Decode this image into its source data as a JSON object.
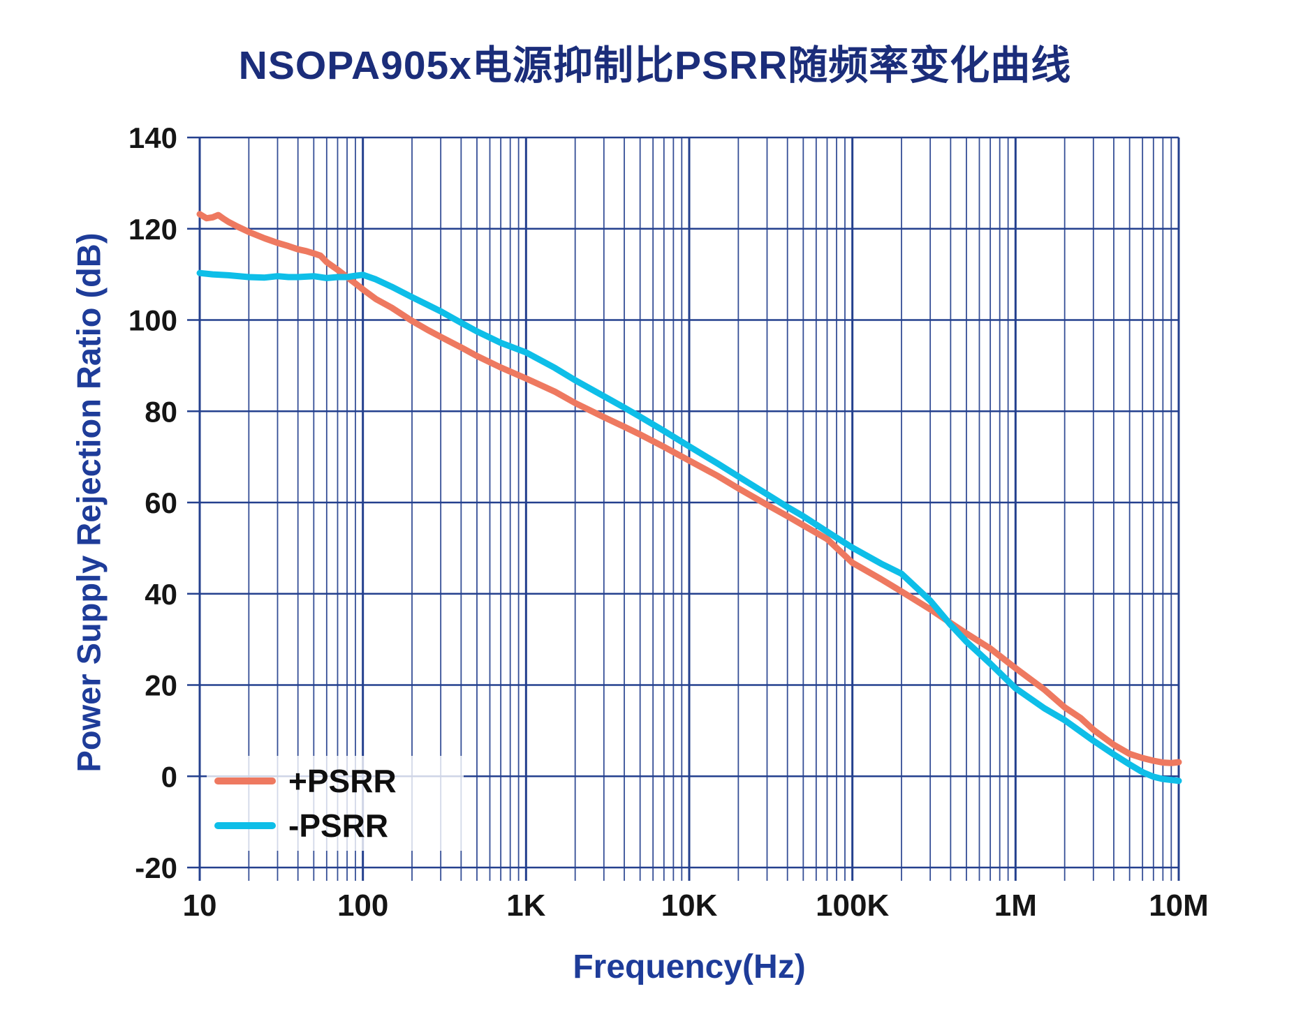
{
  "title": "NSOPA905x电源抑制比PSRR随频率变化曲线",
  "colors": {
    "background": "#FFFFFF",
    "grid": "#24408E",
    "title": "#1B2D7A",
    "axis_title": "#1E3C99",
    "tick_label": "#151515",
    "legend_text": "#0F0F0F",
    "pos_psrr": "#EE7960",
    "neg_psrr": "#0EBEE8"
  },
  "legend": {
    "position": "inside bottom-left",
    "entries": [
      "+PSRR",
      "-PSRR"
    ]
  },
  "chart_data": {
    "type": "line",
    "title": "NSOPA905x电源抑制比PSRR随频率变化曲线",
    "xlabel": "Frequency(Hz)",
    "ylabel": "Power Supply Rejection Ratio (dB)",
    "x_scale": "log",
    "xlim": [
      10,
      10000000
    ],
    "ylim": [
      -20,
      140
    ],
    "grid": "navy major + minor log grid, horizontal lines every 20 dB",
    "legend_position": "inside bottom-left, translucent white box",
    "x_ticks": [
      {
        "value": 10,
        "label": "10"
      },
      {
        "value": 100,
        "label": "100"
      },
      {
        "value": 1000,
        "label": "1K"
      },
      {
        "value": 10000,
        "label": "10K"
      },
      {
        "value": 100000,
        "label": "100K"
      },
      {
        "value": 1000000,
        "label": "1M"
      },
      {
        "value": 10000000,
        "label": "10M"
      }
    ],
    "y_ticks": [
      {
        "value": -20,
        "label": "-20"
      },
      {
        "value": 0,
        "label": "0"
      },
      {
        "value": 20,
        "label": "20"
      },
      {
        "value": 40,
        "label": "40"
      },
      {
        "value": 60,
        "label": "60"
      },
      {
        "value": 80,
        "label": "80"
      },
      {
        "value": 100,
        "label": "100"
      },
      {
        "value": 120,
        "label": "120"
      },
      {
        "value": 140,
        "label": "140"
      }
    ],
    "series": [
      {
        "id": "pos-psrr",
        "name": "+PSRR",
        "color": "#EE7960",
        "points": [
          [
            10,
            123.2
          ],
          [
            11,
            122.3
          ],
          [
            12,
            122.5
          ],
          [
            13,
            123.0
          ],
          [
            14,
            122.2
          ],
          [
            15,
            121.5
          ],
          [
            17,
            120.5
          ],
          [
            20,
            119.3
          ],
          [
            25,
            117.9
          ],
          [
            30,
            116.9
          ],
          [
            35,
            116.2
          ],
          [
            40,
            115.5
          ],
          [
            45,
            115.1
          ],
          [
            50,
            114.6
          ],
          [
            55,
            114.1
          ],
          [
            60,
            112.7
          ],
          [
            70,
            111.0
          ],
          [
            80,
            109.4
          ],
          [
            90,
            108.0
          ],
          [
            100,
            106.7
          ],
          [
            120,
            104.6
          ],
          [
            150,
            102.7
          ],
          [
            200,
            99.8
          ],
          [
            250,
            97.8
          ],
          [
            300,
            96.3
          ],
          [
            400,
            94.0
          ],
          [
            500,
            92.1
          ],
          [
            700,
            89.6
          ],
          [
            1000,
            87.2
          ],
          [
            1500,
            84.3
          ],
          [
            2000,
            81.8
          ],
          [
            3000,
            78.7
          ],
          [
            4000,
            76.6
          ],
          [
            5000,
            74.9
          ],
          [
            7000,
            72.2
          ],
          [
            10000,
            69.2
          ],
          [
            15000,
            65.8
          ],
          [
            20000,
            63.1
          ],
          [
            30000,
            59.5
          ],
          [
            40000,
            57.0
          ],
          [
            50000,
            55.0
          ],
          [
            70000,
            52.0
          ],
          [
            100000,
            46.8
          ],
          [
            150000,
            43.2
          ],
          [
            200000,
            40.5
          ],
          [
            300000,
            36.6
          ],
          [
            400000,
            33.6
          ],
          [
            500000,
            31.3
          ],
          [
            700000,
            28.0
          ],
          [
            1000000,
            23.7
          ],
          [
            1500000,
            19.0
          ],
          [
            2000000,
            15.1
          ],
          [
            2500000,
            12.8
          ],
          [
            3000000,
            10.2
          ],
          [
            4000000,
            6.9
          ],
          [
            5000000,
            4.9
          ],
          [
            6000000,
            4.0
          ],
          [
            7000000,
            3.4
          ],
          [
            8000000,
            3.0
          ],
          [
            9000000,
            2.9
          ],
          [
            10000000,
            3.1
          ]
        ]
      },
      {
        "id": "neg-psrr",
        "name": "-PSRR",
        "color": "#0EBEE8",
        "points": [
          [
            10,
            110.3
          ],
          [
            12,
            110.0
          ],
          [
            15,
            109.8
          ],
          [
            20,
            109.4
          ],
          [
            25,
            109.3
          ],
          [
            30,
            109.6
          ],
          [
            35,
            109.4
          ],
          [
            40,
            109.4
          ],
          [
            50,
            109.6
          ],
          [
            60,
            109.2
          ],
          [
            70,
            109.4
          ],
          [
            80,
            109.4
          ],
          [
            90,
            109.7
          ],
          [
            100,
            109.9
          ],
          [
            120,
            108.9
          ],
          [
            150,
            107.3
          ],
          [
            200,
            105.0
          ],
          [
            250,
            103.3
          ],
          [
            300,
            101.9
          ],
          [
            400,
            99.4
          ],
          [
            500,
            97.5
          ],
          [
            700,
            95.0
          ],
          [
            1000,
            92.9
          ],
          [
            1500,
            89.5
          ],
          [
            2000,
            86.8
          ],
          [
            3000,
            83.3
          ],
          [
            4000,
            80.8
          ],
          [
            5000,
            78.8
          ],
          [
            7000,
            75.7
          ],
          [
            10000,
            72.3
          ],
          [
            15000,
            68.5
          ],
          [
            20000,
            65.7
          ],
          [
            30000,
            61.8
          ],
          [
            40000,
            59.0
          ],
          [
            50000,
            57.0
          ],
          [
            70000,
            53.6
          ],
          [
            100000,
            50.1
          ],
          [
            150000,
            46.6
          ],
          [
            200000,
            44.4
          ],
          [
            300000,
            38.5
          ],
          [
            400000,
            33.2
          ],
          [
            500000,
            29.5
          ],
          [
            700000,
            24.7
          ],
          [
            1000000,
            19.3
          ],
          [
            1500000,
            14.9
          ],
          [
            2000000,
            12.3
          ],
          [
            3000000,
            7.8
          ],
          [
            4000000,
            4.8
          ],
          [
            5000000,
            2.6
          ],
          [
            6000000,
            0.9
          ],
          [
            7000000,
            -0.1
          ],
          [
            8000000,
            -0.6
          ],
          [
            10000000,
            -1.0
          ]
        ]
      }
    ]
  }
}
